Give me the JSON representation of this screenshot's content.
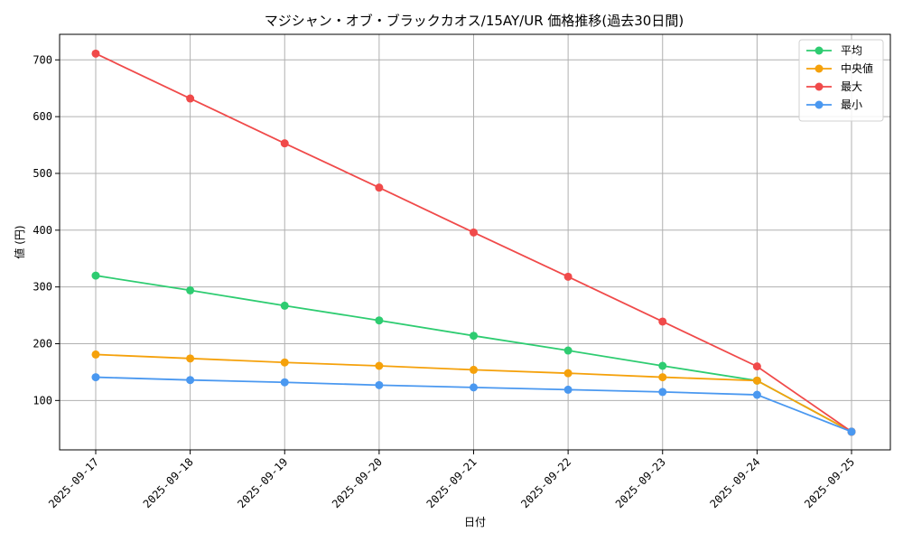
{
  "chart_data": {
    "type": "line",
    "title": "マジシャン・オブ・ブラックカオス/15AY/UR 価格推移(過去30日間)",
    "xlabel": "日付",
    "ylabel": "値 (円)",
    "categories": [
      "2025-09-17",
      "2025-09-18",
      "2025-09-19",
      "2025-09-20",
      "2025-09-21",
      "2025-09-22",
      "2025-09-23",
      "2025-09-24",
      "2025-09-25"
    ],
    "yticks": [
      100,
      200,
      300,
      400,
      500,
      600,
      700
    ],
    "ylim": [
      13,
      745
    ],
    "grid": true,
    "legend_position": "top-right",
    "series": [
      {
        "name": "平均",
        "color": "#2ecc71",
        "values": [
          320,
          294,
          267,
          241,
          214,
          188,
          161,
          135,
          45
        ]
      },
      {
        "name": "中央値",
        "color": "#f5a10b",
        "values": [
          181,
          174,
          167,
          161,
          154,
          148,
          141,
          135,
          45
        ]
      },
      {
        "name": "最大",
        "color": "#f04a4a",
        "values": [
          711,
          632,
          553,
          475,
          396,
          318,
          239,
          160,
          45
        ]
      },
      {
        "name": "最小",
        "color": "#4a98f0",
        "values": [
          141,
          136,
          132,
          127,
          123,
          119,
          115,
          110,
          45
        ]
      }
    ]
  }
}
